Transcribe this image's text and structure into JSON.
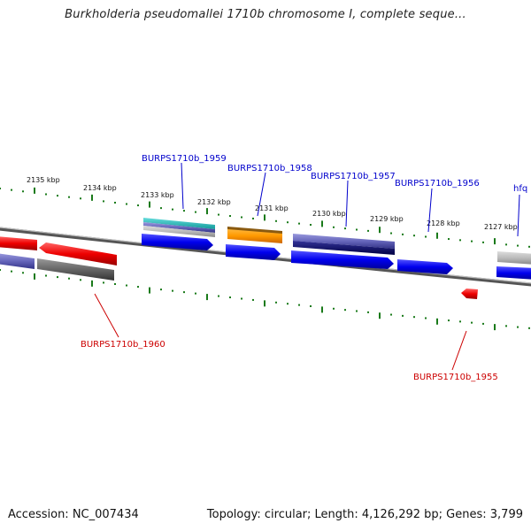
{
  "title": "Burkholderia pseudomallei 1710b chromosome I, complete seque...",
  "footer": {
    "accession": "Accession: NC_007434",
    "topology": "Topology: circular; Length: 4,126,292 bp; Genes: 3,799"
  },
  "colors": {
    "forward_label": "#0000cc",
    "reverse_label": "#cc0000",
    "tick": "#1a7a1a",
    "backbone": "#777777"
  },
  "scale_labels": [
    "2135 kbp",
    "2134 kbp",
    "2133 kbp",
    "2132 kbp",
    "2131 kbp",
    "2130 kbp",
    "2129 kbp",
    "2128 kbp",
    "2127 kbp"
  ],
  "gene_labels": {
    "top": [
      "BURPS1710b_1959",
      "BURPS1710b_1958",
      "BURPS1710b_1957",
      "BURPS1710b_1956",
      "hfq"
    ],
    "bottom": [
      "BURPS1710b_1960",
      "BURPS1710b_1955"
    ]
  }
}
